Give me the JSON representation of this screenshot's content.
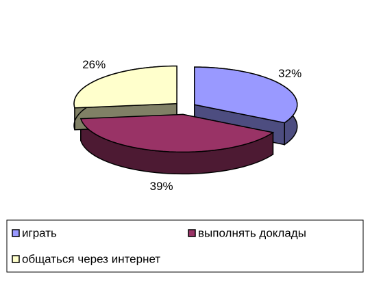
{
  "chart_data": {
    "type": "pie",
    "categories": [
      "играть",
      "выполнять доклады",
      "общаться через интернет"
    ],
    "values": [
      32,
      39,
      26
    ],
    "value_labels": [
      "32%",
      "39%",
      "26%"
    ],
    "colors": [
      "#9999ff",
      "#993366",
      "#ffffcc"
    ],
    "legend": "bottom"
  }
}
